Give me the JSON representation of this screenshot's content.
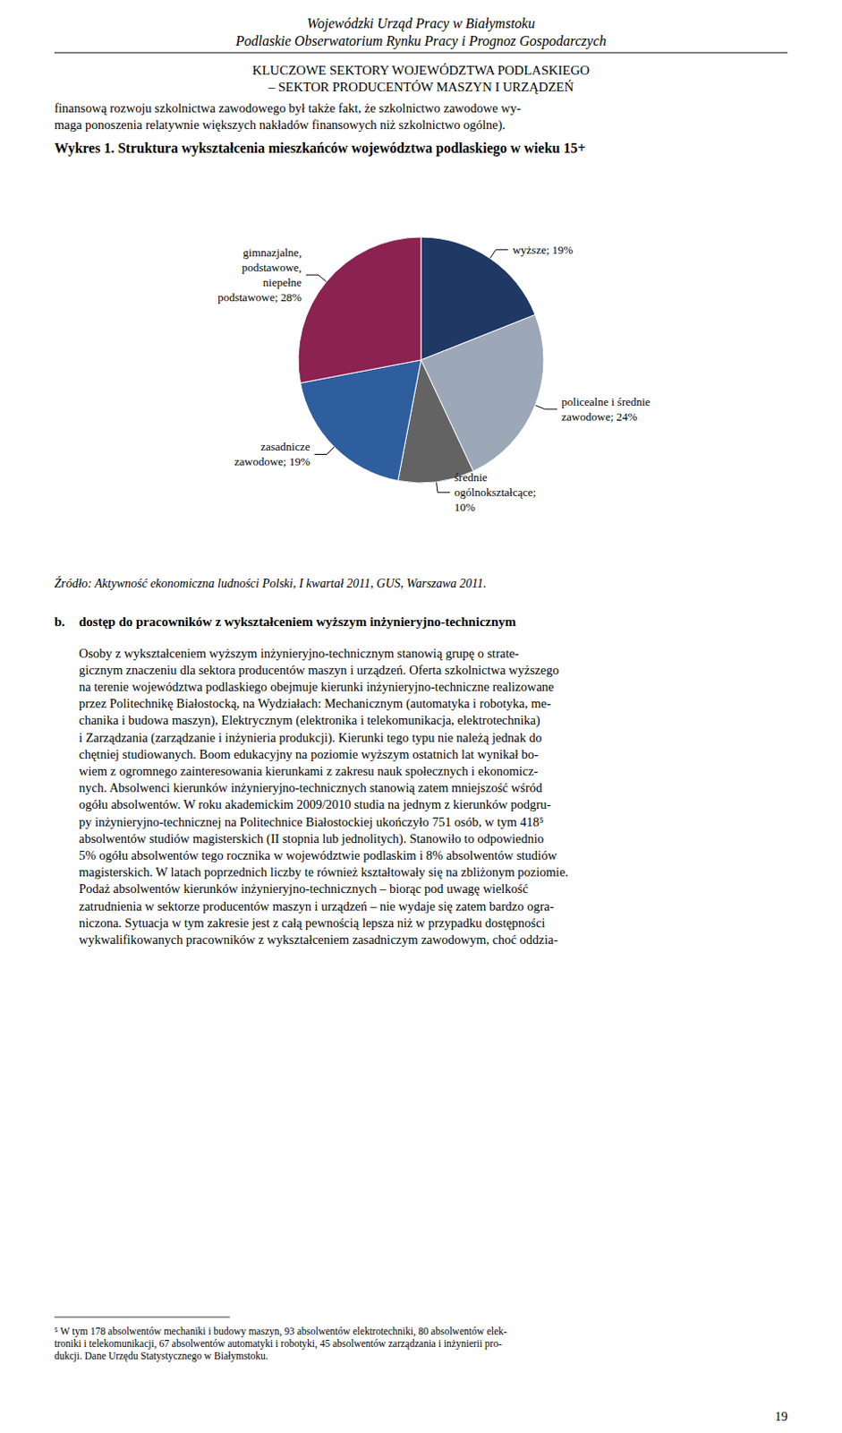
{
  "page": {
    "header": [
      "Wojewódzki Urząd Pracy w Białymstoku",
      "Podlaskie Obserwatorium Rynku Pracy i Prognoz Gospodarczych"
    ],
    "section_title": [
      "KLUCZOWE SEKTORY WOJEWÓDZTWA PODLASKIEGO",
      "– SEKTOR PRODUCENTÓW MASZYN I URZĄDZEŃ"
    ],
    "intro": [
      "finansową rozwoju szkolnictwa zawodowego był także fakt, że szkolnictwo zawodowe wy-",
      "maga ponoszenia relatywnie większych nakładów finansowych niż szkolnictwo ogólne)."
    ],
    "source": [
      "Źródło: ",
      "Aktywność ekonomiczna ludności Polski",
      ", I kwartał 2011, GUS, Warszawa 2011."
    ],
    "section_b": {
      "label": "b.",
      "title": "dostęp do pracowników z wykształceniem wyższym inżynieryjno-technicznym"
    },
    "body": [
      "Osoby z wykształceniem wyższym inżynieryjno-technicznym stanowią grupę o strate-",
      "gicznym znaczeniu dla sektora producentów maszyn i urządzeń. Oferta szkolnictwa wyższego",
      "na terenie województwa podlaskiego obejmuje kierunki inżynieryjno-techniczne realizowane",
      "przez Politechnikę Białostocką, na Wydziałach: Mechanicznym (automatyka i robotyka, me-",
      "chanika i budowa maszyn), Elektrycznym (elektronika i telekomunikacja, elektrotechnika)",
      "i Zarządzania (zarządzanie i inżynieria produkcji). Kierunki tego typu nie należą jednak do",
      "chętniej studiowanych. Boom edukacyjny na poziomie wyższym ostatnich lat wynikał bo-",
      "wiem z ogromnego zainteresowania kierunkami z zakresu nauk społecznych i ekonomicz-",
      "nych. Absolwenci kierunków inżynieryjno-technicznych stanowią zatem mniejszość wśród",
      "ogółu absolwentów. W roku akademickim 2009/2010 studia na jednym z kierunków podgru-",
      "py inżynieryjno-technicznej na Politechnice Białostockiej ukończyło 751 osób, w tym 418⁵",
      "absolwentów studiów magisterskich (II stopnia lub jednolitych). Stanowiło to odpowiednio",
      "5% ogółu absolwentów tego rocznika w województwie podlaskim i 8% absolwentów studiów",
      "magisterskich. W latach poprzednich liczby te również kształtowały się na zbliżonym poziomie.",
      "Podaż absolwentów kierunków inżynieryjno-technicznych – biorąc pod uwagę wielkość",
      "zatrudnienia w sektorze producentów maszyn i urządzeń – nie wydaje się zatem bardzo ogra-",
      "niczona. Sytuacja w tym zakresie jest z całą pewnością lepsza niż w przypadku dostępności",
      "wykwalifikowanych pracowników z wykształceniem zasadniczym zawodowym, choć oddzia-"
    ],
    "footnotes": [
      "⁵ W tym 178 absolwentów mechaniki i budowy maszyn, 93 absolwentów elektrotechniki, 80 absolwentów elek-",
      "troniki i telekomunikacji, 67 absolwentów automatyki i robotyki, 45 absolwentów zarządzania i inżynierii pro-",
      "dukcji. Dane Urzędu Statystycznego w Białymstoku."
    ],
    "page_number": "19"
  },
  "chart_data": {
    "type": "pie",
    "title": "Wykres 1. Struktura wykształcenia mieszkańców województwa podlaskiego w wieku 15+",
    "categories": [
      "wyższe; 19%",
      "policealne i średnie\nzawodowe; 24%",
      "średnie\nogólnokształcące;\n10%",
      "zasadnicze\nzawodowe; 19%",
      "gimnazjalne,\npodstawowe,\nniepełne\npodstawowe; 28%"
    ],
    "values": [
      19,
      24,
      10,
      19,
      28
    ],
    "colors": [
      "#1F3864",
      "#9CA8B8",
      "#636363",
      "#2E5E9E",
      "#8B2252"
    ]
  }
}
